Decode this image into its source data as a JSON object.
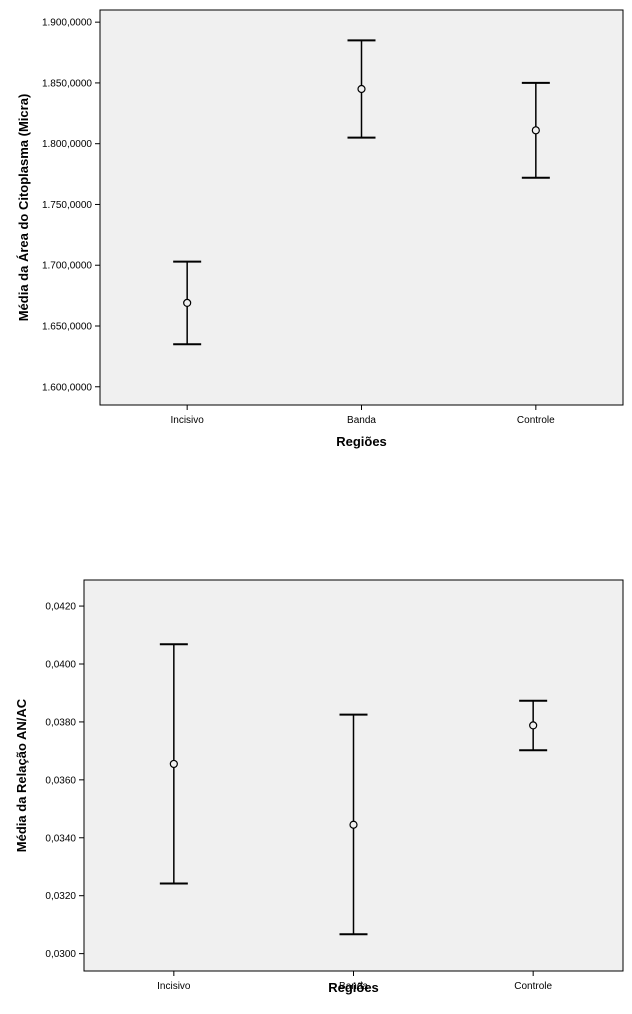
{
  "colors": {
    "plot_background": "#f0f0f0",
    "page_background": "#ffffff",
    "marks": "#000000"
  },
  "chart_data": [
    {
      "type": "errorbar",
      "xlabel": "Regiões",
      "ylabel": "Média da Área do Citoplasma (Micra)",
      "categories": [
        "Incisivo",
        "Banda",
        "Controle"
      ],
      "ylim": [
        1.585,
        1.91
      ],
      "yticks": [
        1.6,
        1.65,
        1.7,
        1.75,
        1.8,
        1.85,
        1.9
      ],
      "ytick_labels": [
        "1.600,0000",
        "1.650,0000",
        "1.700,0000",
        "1.750,0000",
        "1.800,0000",
        "1.850,0000",
        "1.900,0000"
      ],
      "series": [
        {
          "mean": [
            1.669,
            1.845,
            1.811
          ],
          "lower": [
            1.635,
            1.805,
            1.772
          ],
          "upper": [
            1.703,
            1.885,
            1.85
          ]
        }
      ],
      "grid": false,
      "legend": "none"
    },
    {
      "type": "errorbar",
      "xlabel": "Regiões",
      "ylabel": "Média da Relação AN/AC",
      "categories": [
        "Incisivo",
        "Banda",
        "Controle"
      ],
      "ylim": [
        0.0294,
        0.0429
      ],
      "yticks": [
        0.03,
        0.032,
        0.034,
        0.036,
        0.038,
        0.04,
        0.042
      ],
      "ytick_labels": [
        "0,0300",
        "0,0320",
        "0,0340",
        "0,0360",
        "0,0380",
        "0,0400",
        "0,0420"
      ],
      "series": [
        {
          "mean": [
            0.03655,
            0.03445,
            0.03788
          ],
          "lower": [
            0.03242,
            0.03067,
            0.03702
          ],
          "upper": [
            0.04068,
            0.03825,
            0.03873
          ]
        }
      ],
      "grid": false,
      "legend": "none"
    }
  ]
}
